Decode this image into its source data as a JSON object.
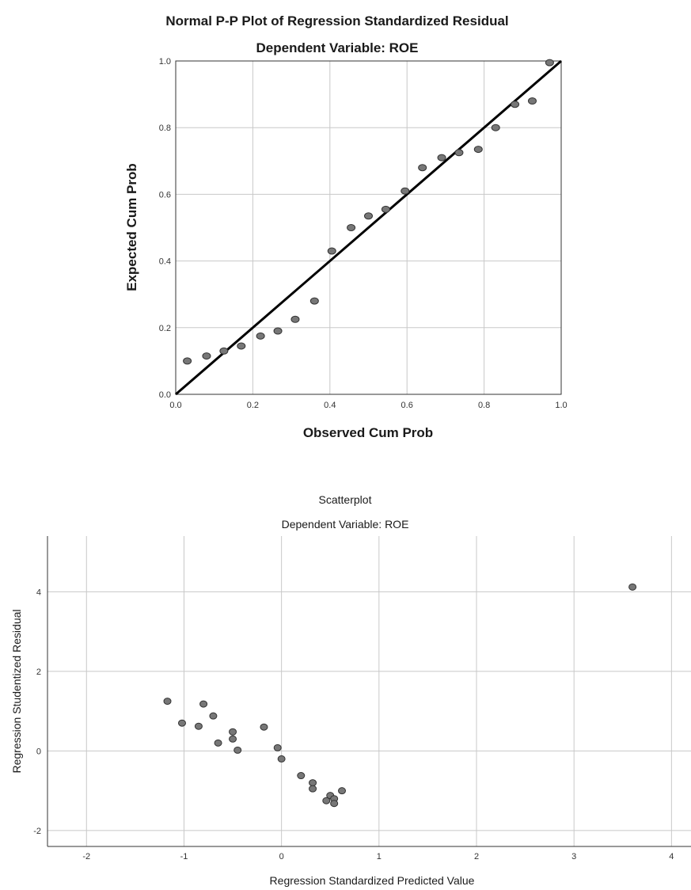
{
  "chart_data": [
    {
      "type": "scatter",
      "title": "Normal P-P Plot of Regression Standardized Residual",
      "subtitle": "Dependent Variable: ROE",
      "xlabel": "Observed Cum Prob",
      "ylabel": "Expected Cum Prob",
      "xlim": [
        0,
        1
      ],
      "ylim": [
        0,
        1
      ],
      "xticks": [
        "0.0",
        "0.2",
        "0.4",
        "0.6",
        "0.8",
        "1.0"
      ],
      "yticks": [
        "0.0",
        "0.2",
        "0.4",
        "0.6",
        "0.8",
        "1.0"
      ],
      "grid": true,
      "reference_line": [
        [
          0,
          0
        ],
        [
          1,
          1
        ]
      ],
      "x": [
        0.03,
        0.08,
        0.125,
        0.17,
        0.22,
        0.265,
        0.31,
        0.36,
        0.405,
        0.455,
        0.5,
        0.545,
        0.595,
        0.64,
        0.69,
        0.735,
        0.785,
        0.83,
        0.88,
        0.925,
        0.97
      ],
      "y": [
        0.1,
        0.115,
        0.13,
        0.145,
        0.175,
        0.19,
        0.225,
        0.28,
        0.43,
        0.5,
        0.535,
        0.555,
        0.61,
        0.68,
        0.71,
        0.725,
        0.735,
        0.8,
        0.87,
        0.88,
        0.995
      ]
    },
    {
      "type": "scatter",
      "title": "Scatterplot",
      "subtitle": "Dependent Variable: ROE",
      "xlabel": "Regression Standardized Predicted Value",
      "ylabel": "Regression Studentized Residual",
      "xlim": [
        -2.4,
        4.2
      ],
      "ylim": [
        -2.4,
        5.4
      ],
      "xticks": [
        "-2",
        "-1",
        "0",
        "1",
        "2",
        "3",
        "4"
      ],
      "yticks": [
        "-2",
        "0",
        "2",
        "4"
      ],
      "grid": true,
      "x": [
        -1.17,
        -1.02,
        -0.85,
        -0.8,
        -0.7,
        -0.65,
        -0.5,
        -0.5,
        -0.45,
        -0.18,
        -0.04,
        0,
        0.2,
        0.32,
        0.32,
        0.46,
        0.5,
        0.54,
        0.54,
        0.62,
        3.6
      ],
      "y": [
        1.25,
        0.7,
        0.62,
        1.18,
        0.88,
        0.2,
        0.48,
        0.3,
        0.02,
        0.6,
        0.08,
        -0.2,
        -0.62,
        -0.8,
        -0.95,
        -1.25,
        -1.12,
        -1.2,
        -1.32,
        -1.0,
        4.12
      ]
    }
  ]
}
